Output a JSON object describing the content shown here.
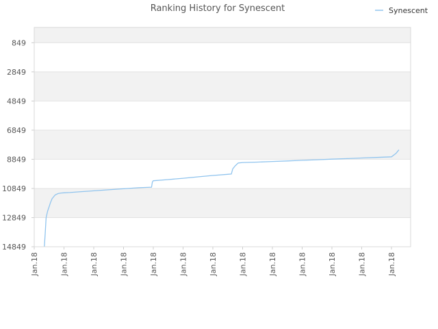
{
  "chart_data": {
    "type": "line",
    "title": "Ranking History for Synescent",
    "xlabel": "",
    "ylabel": "",
    "y_inverted": true,
    "ylim": [
      14849,
      0
    ],
    "y_ticks": [
      849,
      2849,
      4849,
      6849,
      8849,
      10849,
      12849,
      14849
    ],
    "y_tick_labels": [
      "849",
      "2849",
      "4849",
      "6849",
      "8849",
      "10849",
      "12849",
      "14849"
    ],
    "x_tick_labels": [
      "Jan.18",
      "Jan.18",
      "Jan.18",
      "Jan.18",
      "Jan.18",
      "Jan.18",
      "Jan.18",
      "Jan.18",
      "Jan.18",
      "Jan.18",
      "Jan.18",
      "Jan.18",
      "Jan.18"
    ],
    "grid": true,
    "legend_position": "top-right",
    "colors": {
      "series": "#90c4ee",
      "band": "#f2f2f2",
      "grid": "#e2e2e2",
      "axis": "#cccccc"
    },
    "series": [
      {
        "name": "Synescent",
        "x": [
          0.34,
          0.37,
          0.4,
          0.45,
          0.5,
          0.55,
          0.6,
          0.7,
          0.8,
          0.9,
          1.0,
          1.2,
          1.5,
          2.0,
          2.5,
          3.0,
          3.5,
          3.94,
          3.97,
          4.0,
          4.5,
          5.0,
          5.5,
          6.0,
          6.5,
          6.62,
          6.67,
          6.75,
          6.85,
          7.0,
          7.5,
          8.0,
          8.5,
          9.0,
          9.5,
          10.0,
          10.5,
          11.0,
          11.5,
          12.0,
          12.15,
          12.25
        ],
        "y": [
          14849,
          13900,
          12849,
          12400,
          12100,
          11800,
          11550,
          11300,
          11200,
          11160,
          11150,
          11130,
          11080,
          11010,
          10940,
          10870,
          10800,
          10760,
          10400,
          10320,
          10240,
          10150,
          10050,
          9960,
          9880,
          9860,
          9500,
          9300,
          9100,
          9070,
          9040,
          9000,
          8960,
          8920,
          8880,
          8840,
          8800,
          8760,
          8720,
          8680,
          8450,
          8200
        ]
      }
    ]
  }
}
